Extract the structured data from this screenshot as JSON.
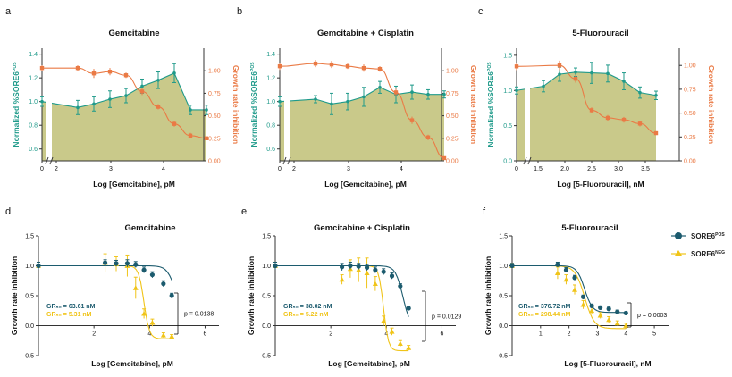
{
  "colors": {
    "teal": "#1f9a8a",
    "orange": "#ea7a45",
    "fill": "#c9c98a",
    "navy": "#1c5b6e",
    "yellow": "#f0c419"
  },
  "legend": {
    "pos_label": "SORE6",
    "pos_sup": "POS",
    "neg_label": "SORE6",
    "neg_sup": "NEG"
  },
  "chart_data": [
    {
      "panel": "a",
      "type": "line",
      "title": "Gemcitabine",
      "xlabel": "Log [Gemcitabine], pM",
      "ylabel_left": "Normalized %SORE6",
      "ylabel_left_sup": "POS",
      "ylabel_right": "Growth rate inhibition",
      "x_break": true,
      "xticks": [
        "0",
        "2",
        "3",
        "4"
      ],
      "yticks_left": [
        "0.6",
        "0.8",
        "1.0",
        "1.2",
        "1.4"
      ],
      "yticks_right": [
        "0.00",
        "0.25",
        "0.50",
        "0.75",
        "1.00"
      ],
      "ylim_left": [
        0.5,
        1.45
      ],
      "ylim_right": [
        0,
        1.25
      ],
      "series": [
        {
          "name": "Normalized %SORE6 POS",
          "axis": "left",
          "x": [
            0,
            2.4,
            2.7,
            3.0,
            3.3,
            3.6,
            3.9,
            4.2,
            4.5,
            4.8
          ],
          "y": [
            1.0,
            0.95,
            0.98,
            1.02,
            1.05,
            1.13,
            1.18,
            1.24,
            0.93,
            0.93
          ],
          "err": [
            0.04,
            0.06,
            0.06,
            0.07,
            0.06,
            0.06,
            0.07,
            0.08,
            0.04,
            0.04
          ]
        },
        {
          "name": "Growth rate inhibition",
          "axis": "right",
          "x": [
            0,
            2.4,
            2.7,
            3.0,
            3.3,
            3.6,
            3.9,
            4.2,
            4.5,
            4.8
          ],
          "y": [
            1.03,
            1.03,
            0.97,
            0.99,
            0.95,
            0.77,
            0.6,
            0.41,
            0.28,
            0.25
          ],
          "err": [
            0.03,
            0.03,
            0.05,
            0.04,
            0.03,
            0.04,
            0.03,
            0.03,
            0.03,
            0.02
          ]
        }
      ]
    },
    {
      "panel": "b",
      "type": "line",
      "title": "Gemcitabine + Cisplatin",
      "xlabel": "Log [Gemcitabine], pM",
      "ylabel_left": "Normalized %SORE6",
      "ylabel_left_sup": "POS",
      "ylabel_right": "Growth rate inhibition",
      "x_break": true,
      "xticks": [
        "0",
        "2",
        "3",
        "4"
      ],
      "yticks_left": [
        "0.6",
        "0.8",
        "1.0",
        "1.2",
        "1.4"
      ],
      "yticks_right": [
        "0.00",
        "0.25",
        "0.50",
        "0.75",
        "1.00"
      ],
      "ylim_left": [
        0.5,
        1.45
      ],
      "ylim_right": [
        0,
        1.25
      ],
      "series": [
        {
          "name": "Normalized %SORE6 POS",
          "axis": "left",
          "x": [
            0,
            2.4,
            2.7,
            3.0,
            3.3,
            3.6,
            3.9,
            4.2,
            4.5,
            4.8
          ],
          "y": [
            1.0,
            1.02,
            0.98,
            1.0,
            1.04,
            1.12,
            1.06,
            1.08,
            1.06,
            1.06
          ],
          "err": [
            0.04,
            0.03,
            0.09,
            0.07,
            0.08,
            0.05,
            0.07,
            0.06,
            0.04,
            0.03
          ]
        },
        {
          "name": "Growth rate inhibition",
          "axis": "right",
          "x": [
            0,
            2.4,
            2.7,
            3.0,
            3.3,
            3.6,
            3.9,
            4.2,
            4.5,
            4.8
          ],
          "y": [
            1.05,
            1.08,
            1.07,
            1.05,
            1.03,
            1.02,
            0.76,
            0.45,
            0.26,
            0.03
          ],
          "err": [
            0.04,
            0.04,
            0.04,
            0.03,
            0.04,
            0.03,
            0.04,
            0.04,
            0.03,
            0.02
          ]
        }
      ]
    },
    {
      "panel": "c",
      "type": "line",
      "title": "5-Fluorouracil",
      "xlabel": "Log [5-Fluorouracil], nM",
      "ylabel_left": "Normalized %SORE6",
      "ylabel_left_sup": "POS",
      "ylabel_right": "Growth rate inhibition",
      "x_break": true,
      "xticks": [
        "0",
        "1.5",
        "2.0",
        "2.5",
        "3.0",
        "3.5"
      ],
      "yticks_left": [
        "0.0",
        "0.5",
        "1.0",
        "1.5"
      ],
      "yticks_right": [
        "0.00",
        "0.25",
        "0.50",
        "0.75",
        "1.00"
      ],
      "ylim_left": [
        0,
        1.6
      ],
      "ylim_right": [
        0,
        1.18
      ],
      "series": [
        {
          "name": "Normalized %SORE6 POS",
          "axis": "left",
          "x": [
            0,
            1.6,
            1.9,
            2.2,
            2.5,
            2.8,
            3.1,
            3.4,
            3.7
          ],
          "y": [
            1.0,
            1.06,
            1.23,
            1.26,
            1.25,
            1.24,
            1.13,
            0.97,
            0.93
          ],
          "err": [
            0.05,
            0.08,
            0.1,
            0.06,
            0.15,
            0.12,
            0.12,
            0.08,
            0.06
          ]
        },
        {
          "name": "Growth rate inhibition",
          "axis": "right",
          "x": [
            0,
            1.9,
            2.2,
            2.5,
            2.8,
            3.1,
            3.4,
            3.7
          ],
          "y": [
            0.99,
            1.0,
            0.86,
            0.53,
            0.45,
            0.43,
            0.39,
            0.29
          ],
          "err": [
            0.04,
            0.05,
            0.04,
            0.03,
            0.03,
            0.03,
            0.03,
            0.02
          ]
        }
      ]
    },
    {
      "panel": "d",
      "type": "line",
      "title": "Gemcitabine",
      "xlabel": "Log [Gemcitabine], pM",
      "ylabel": "Growth rate inhibition",
      "xticks": [
        "2",
        "4",
        "6"
      ],
      "yticks": [
        "-0.5",
        "0.0",
        "0.5",
        "1.0",
        "1.5"
      ],
      "xlim": [
        0,
        6.5
      ],
      "ylim": [
        -0.5,
        1.5
      ],
      "series": [
        {
          "name": "SORE6 POS",
          "x": [
            0,
            2.4,
            2.8,
            3.2,
            3.5,
            3.8,
            4.1,
            4.5,
            4.8
          ],
          "y": [
            1.0,
            1.05,
            1.04,
            1.04,
            1.02,
            0.93,
            0.85,
            0.7,
            0.5
          ],
          "err": [
            0.06,
            0.05,
            0.05,
            0.06,
            0.05,
            0.05,
            0.05,
            0.05,
            0.04
          ]
        },
        {
          "name": "SORE6 NEG",
          "x": [
            0,
            2.4,
            2.8,
            3.2,
            3.5,
            3.8,
            4.1,
            4.5,
            4.8
          ],
          "y": [
            1.0,
            1.05,
            1.03,
            1.0,
            0.63,
            0.2,
            0.05,
            -0.16,
            -0.18
          ],
          "err": [
            0.06,
            0.15,
            0.12,
            0.18,
            0.18,
            0.08,
            0.06,
            0.04,
            0.03
          ]
        }
      ],
      "annotations": {
        "gr_pos": "GR₅₀ = 63.61 nM",
        "gr_neg": "GR₅₀ = 5.31 nM",
        "p": "p = 0.0138"
      }
    },
    {
      "panel": "e",
      "type": "line",
      "title": "Gemcitabine + Cisplatin",
      "xlabel": "Log [Gemcitabine], pM",
      "ylabel": "Growth rate inhibition",
      "xticks": [
        "2",
        "4",
        "6"
      ],
      "yticks": [
        "-0.5",
        "0.0",
        "0.5",
        "1.0",
        "1.5"
      ],
      "xlim": [
        0,
        6.5
      ],
      "ylim": [
        -0.5,
        1.5
      ],
      "series": [
        {
          "name": "SORE6 POS",
          "x": [
            0,
            2.4,
            2.7,
            3.0,
            3.3,
            3.6,
            3.9,
            4.2,
            4.5,
            4.8
          ],
          "y": [
            1.0,
            0.98,
            1.0,
            0.99,
            0.97,
            0.93,
            0.9,
            0.83,
            0.66,
            0.29
          ],
          "err": [
            0.06,
            0.06,
            0.06,
            0.05,
            0.05,
            0.05,
            0.05,
            0.05,
            0.04,
            0.03
          ]
        },
        {
          "name": "SORE6 NEG",
          "x": [
            0,
            2.4,
            2.7,
            3.0,
            3.3,
            3.6,
            3.9,
            4.2,
            4.5,
            4.8
          ],
          "y": [
            1.0,
            0.77,
            0.95,
            0.93,
            0.88,
            0.7,
            0.08,
            -0.1,
            -0.3,
            -0.37
          ],
          "err": [
            0.06,
            0.08,
            0.15,
            0.2,
            0.25,
            0.12,
            0.08,
            0.06,
            0.05,
            0.04
          ]
        }
      ],
      "annotations": {
        "gr_pos": "GR₅₀ = 38.02 nM",
        "gr_neg": "GR₅₀ = 5.22 nM",
        "p": "p = 0.0129"
      }
    },
    {
      "panel": "f",
      "type": "line",
      "title": "5-Fluorouracil",
      "xlabel": "Log [5-Fluorouracil], nM",
      "ylabel": "Growth rate inhibition",
      "xticks": [
        "1",
        "2",
        "3",
        "4",
        "5"
      ],
      "yticks": [
        "-0.5",
        "0.0",
        "0.5",
        "1.0",
        "1.5"
      ],
      "xlim": [
        0,
        5.5
      ],
      "ylim": [
        -0.5,
        1.5
      ],
      "series": [
        {
          "name": "SORE6 POS",
          "x": [
            0,
            1.6,
            1.9,
            2.2,
            2.5,
            2.8,
            3.1,
            3.4,
            3.7,
            4.0
          ],
          "y": [
            1.0,
            1.02,
            0.93,
            0.8,
            0.48,
            0.33,
            0.3,
            0.28,
            0.23,
            0.21
          ],
          "err": [
            0.04,
            0.04,
            0.04,
            0.04,
            0.03,
            0.03,
            0.03,
            0.03,
            0.03,
            0.02
          ]
        },
        {
          "name": "SORE6 NEG",
          "x": [
            0,
            1.6,
            1.9,
            2.2,
            2.5,
            2.8,
            3.1,
            3.4,
            3.7,
            4.0
          ],
          "y": [
            1.0,
            0.88,
            0.77,
            0.6,
            0.35,
            0.25,
            0.17,
            0.1,
            0.04,
            0.0
          ],
          "err": [
            0.04,
            0.1,
            0.08,
            0.08,
            0.07,
            0.06,
            0.05,
            0.05,
            0.04,
            0.04
          ]
        }
      ],
      "annotations": {
        "gr_pos": "GR₅₀ = 376.72 nM",
        "gr_neg": "GR₅₀ = 298.44 nM",
        "p": "p = 0.0003"
      }
    }
  ]
}
